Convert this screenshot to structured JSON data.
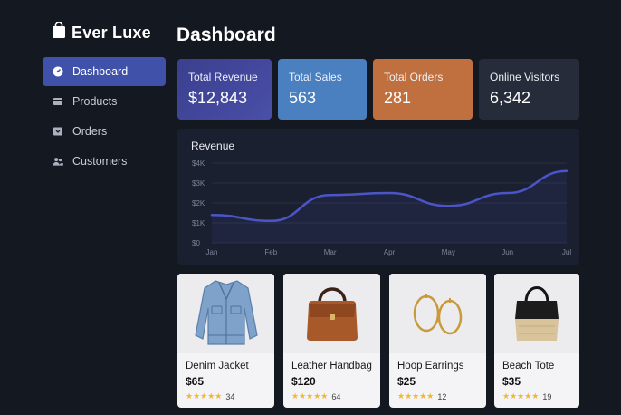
{
  "brand": {
    "name": "Ever Luxe",
    "icon": "shopping-bag-icon"
  },
  "nav": {
    "items": [
      {
        "label": "Dashboard",
        "icon": "gauge-icon",
        "active": true
      },
      {
        "label": "Products",
        "icon": "box-icon",
        "active": false
      },
      {
        "label": "Orders",
        "icon": "inbox-icon",
        "active": false
      },
      {
        "label": "Customers",
        "icon": "users-icon",
        "active": false
      }
    ]
  },
  "header": {
    "title": "Dashboard"
  },
  "kpis": [
    {
      "label": "Total Revenue",
      "value": "$12,843",
      "color": "#4448a0"
    },
    {
      "label": "Total Sales",
      "value": "563",
      "color": "#4a7fc0"
    },
    {
      "label": "Total Orders",
      "value": "281",
      "color": "#c0703f"
    },
    {
      "label": "Online Visitors",
      "value": "6,342",
      "color": "#262c3a"
    }
  ],
  "chart_data": {
    "type": "line",
    "title": "Revenue",
    "categories": [
      "Jan",
      "Feb",
      "Mar",
      "Apr",
      "May",
      "Jun",
      "Jul"
    ],
    "series": [
      {
        "values": [
          1400,
          1100,
          2400,
          2500,
          1850,
          2500,
          3600
        ],
        "color": "#4b55c8"
      }
    ],
    "yticks": [
      "$0",
      "$1K",
      "$2K",
      "$3K",
      "$4K"
    ],
    "ylim": [
      0,
      4000
    ],
    "grid": true
  },
  "products": [
    {
      "name": "Denim Jacket",
      "price": "$65",
      "stars": "★★★★★",
      "reviews": "34",
      "icon": "jacket-icon"
    },
    {
      "name": "Leather Handbag",
      "price": "$120",
      "stars": "★★★★★",
      "reviews": "64",
      "icon": "handbag-icon"
    },
    {
      "name": "Hoop Earrings",
      "price": "$25",
      "stars": "★★★★★",
      "reviews": "12",
      "icon": "earrings-icon"
    },
    {
      "name": "Beach Tote",
      "price": "$35",
      "stars": "★★★★★",
      "reviews": "19",
      "icon": "tote-icon"
    }
  ],
  "colors": {
    "accent": "#3f51a8",
    "background": "#141821",
    "panel": "#1b2030",
    "star": "#f5b72d"
  }
}
